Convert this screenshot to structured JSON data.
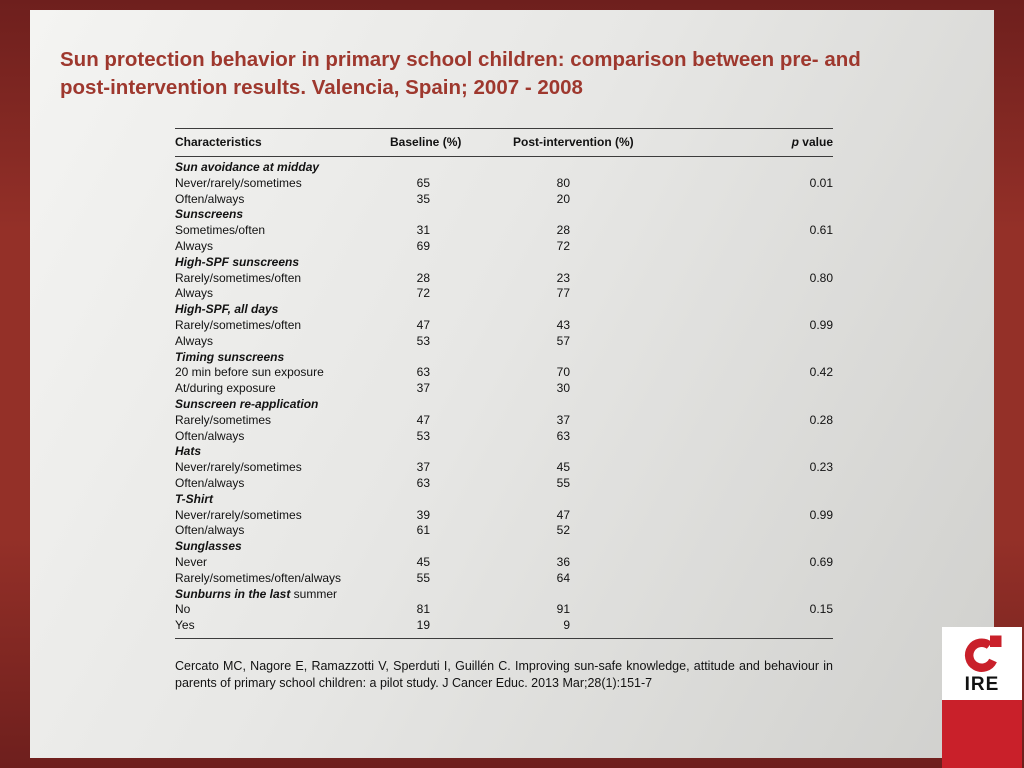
{
  "slide": {
    "title_lines": [
      "Sun protection behavior in primary school children: comparison between pre- and",
      "post-intervention results. Valencia, Spain; 2007 - 2008"
    ]
  },
  "table": {
    "columns": [
      "Characteristics",
      "Baseline (%)",
      "Post-intervention (%)",
      "p value"
    ],
    "p_header": {
      "italic": "p",
      "rest": " value"
    },
    "rows": [
      {
        "type": "section",
        "label": "Sun avoidance at midday"
      },
      {
        "type": "data",
        "label": "Never/rarely/sometimes",
        "baseline": "65",
        "post": "80",
        "p": "0.01"
      },
      {
        "type": "data",
        "label": "Often/always",
        "baseline": "35",
        "post": "20",
        "p": ""
      },
      {
        "type": "section",
        "label": "Sunscreens"
      },
      {
        "type": "data",
        "label": "Sometimes/often",
        "baseline": "31",
        "post": "28",
        "p": "0.61"
      },
      {
        "type": "data",
        "label": "Always",
        "baseline": "69",
        "post": "72",
        "p": ""
      },
      {
        "type": "section",
        "label": "High-SPF sunscreens"
      },
      {
        "type": "data",
        "label": "Rarely/sometimes/often",
        "baseline": "28",
        "post": "23",
        "p": "0.80"
      },
      {
        "type": "data",
        "label": "Always",
        "baseline": "72",
        "post": "77",
        "p": ""
      },
      {
        "type": "section",
        "label": "High-SPF, all days"
      },
      {
        "type": "data",
        "label": "Rarely/sometimes/often",
        "baseline": "47",
        "post": "43",
        "p": "0.99"
      },
      {
        "type": "data",
        "label": "Always",
        "baseline": "53",
        "post": "57",
        "p": ""
      },
      {
        "type": "section",
        "label": "Timing sunscreens"
      },
      {
        "type": "data",
        "label": "20 min before sun exposure",
        "baseline": "63",
        "post": "70",
        "p": "0.42"
      },
      {
        "type": "data",
        "label": "At/during exposure",
        "baseline": "37",
        "post": "30",
        "p": ""
      },
      {
        "type": "section",
        "label": "Sunscreen re-application"
      },
      {
        "type": "data",
        "label": "Rarely/sometimes",
        "baseline": "47",
        "post": "37",
        "p": "0.28"
      },
      {
        "type": "data",
        "label": "Often/always",
        "baseline": "53",
        "post": "63",
        "p": ""
      },
      {
        "type": "section",
        "label": "Hats"
      },
      {
        "type": "data",
        "label": "Never/rarely/sometimes",
        "baseline": "37",
        "post": "45",
        "p": "0.23"
      },
      {
        "type": "data",
        "label": "Often/always",
        "baseline": "63",
        "post": "55",
        "p": ""
      },
      {
        "type": "section",
        "label": "T-Shirt"
      },
      {
        "type": "data",
        "label": "Never/rarely/sometimes",
        "baseline": "39",
        "post": "47",
        "p": "0.99"
      },
      {
        "type": "data",
        "label": "Often/always",
        "baseline": "61",
        "post": "52",
        "p": ""
      },
      {
        "type": "section",
        "label": "Sunglasses"
      },
      {
        "type": "data",
        "label": "Never",
        "baseline": "45",
        "post": "36",
        "p": "0.69"
      },
      {
        "type": "data",
        "label": "Rarely/sometimes/often/always",
        "baseline": "55",
        "post": "64",
        "p": ""
      },
      {
        "type": "section",
        "label": "Sunburns in the last",
        "label_suffix": " summer"
      },
      {
        "type": "data",
        "label": "No",
        "baseline": "81",
        "post": "91",
        "p": "0.15"
      },
      {
        "type": "data",
        "label": "Yes",
        "baseline": "19",
        "post": "9",
        "p": ""
      }
    ]
  },
  "citation": "Cercato MC, Nagore E, Ramazzotti V, Sperduti I, Guillén C. Improving sun-safe knowledge, attitude and behaviour in parents of primary school children: a pilot study. J Cancer Educ. 2013 Mar;28(1):151-7",
  "logo": {
    "text": "IRE"
  },
  "colors": {
    "frame_red": "#943028",
    "title_red": "#9e382e",
    "logo_red": "#c9202a"
  }
}
